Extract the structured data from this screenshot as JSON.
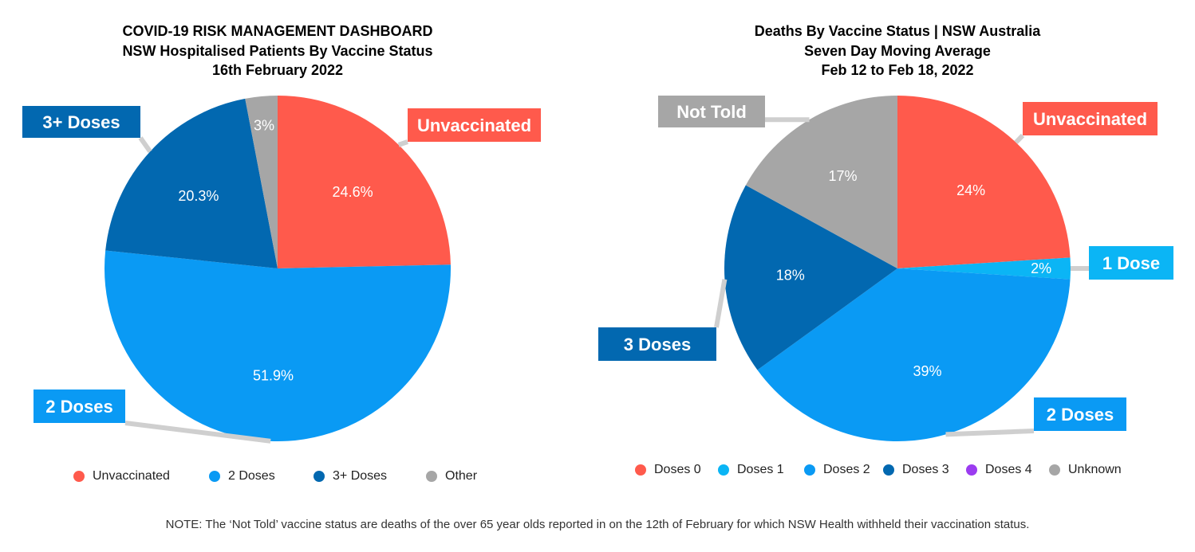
{
  "chart_data": [
    {
      "type": "pie",
      "title": [
        "COVID-19 RISK MANAGEMENT DASHBOARD",
        "NSW Hospitalised Patients By Vaccine Status",
        "16th February 2022"
      ],
      "slices": [
        {
          "name": "Unvaccinated",
          "value": 24.6,
          "label": "24.6%",
          "callout": "Unvaccinated",
          "color": "#FF5A4C"
        },
        {
          "name": "2 Doses",
          "value": 51.9,
          "label": "51.9%",
          "callout": "2 Doses",
          "color": "#0A9AF4"
        },
        {
          "name": "3+ Doses",
          "value": 20.3,
          "label": "20.3%",
          "callout": "3+ Doses",
          "color": "#0268B0"
        },
        {
          "name": "Other",
          "value": 3,
          "label": "3%",
          "callout": "",
          "color": "#A6A6A6"
        }
      ],
      "legend": [
        {
          "name": "Unvaccinated",
          "color": "#FF5A4C"
        },
        {
          "name": "2 Doses",
          "color": "#0A9AF4"
        },
        {
          "name": "3+ Doses",
          "color": "#0268B0"
        },
        {
          "name": "Other",
          "color": "#A6A6A6"
        }
      ],
      "legend_position": "bottom"
    },
    {
      "type": "pie",
      "title": [
        "Deaths By Vaccine Status | NSW Australia",
        "Seven Day Moving Average",
        "Feb 12 to Feb 18, 2022"
      ],
      "slices": [
        {
          "name": "Doses 0",
          "value": 24,
          "label": "24%",
          "callout": "Unvaccinated",
          "color": "#FF5A4C"
        },
        {
          "name": "Doses 1",
          "value": 2,
          "label": "2%",
          "callout": "1 Dose",
          "color": "#0BB5F5"
        },
        {
          "name": "Doses 2",
          "value": 39,
          "label": "39%",
          "callout": "2 Doses",
          "color": "#0A9AF4"
        },
        {
          "name": "Doses 3",
          "value": 18,
          "label": "18%",
          "callout": "3 Doses",
          "color": "#0268B0"
        },
        {
          "name": "Unknown",
          "value": 17,
          "label": "17%",
          "callout": "Not Told",
          "color": "#A6A6A6"
        }
      ],
      "legend": [
        {
          "name": "Doses 0",
          "color": "#FF5A4C"
        },
        {
          "name": "Doses 1",
          "color": "#0BB5F5"
        },
        {
          "name": "Doses 2",
          "color": "#0A9AF4"
        },
        {
          "name": "Doses 3",
          "color": "#0268B0"
        },
        {
          "name": "Doses 4",
          "color": "#9B3CF0"
        },
        {
          "name": "Unknown",
          "color": "#A6A6A6"
        }
      ],
      "legend_position": "bottom"
    }
  ],
  "note": "NOTE: The ‘Not Told’ vaccine status are deaths of the over 65 year olds reported in on the 12th of February for which NSW Health withheld their vaccination status."
}
